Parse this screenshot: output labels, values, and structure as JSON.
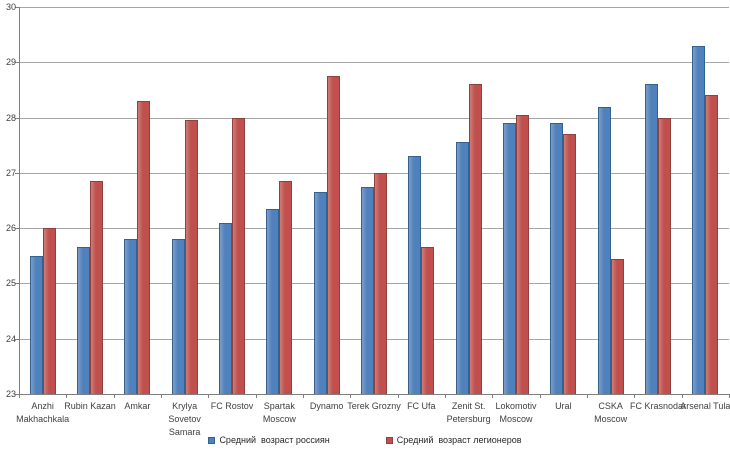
{
  "colors": {
    "series_russians": "#4F81BD",
    "series_legionnaires": "#C0504D",
    "gridline": "#A6A6A6",
    "axis": "#7F7F7F",
    "text": "#404040",
    "background": "#FFFFFF"
  },
  "chart_data": {
    "type": "bar",
    "title": "",
    "xlabel": "",
    "ylabel": "",
    "categories": [
      "Anzhi Makhachkala",
      "Rubin Kazan",
      "Amkar",
      "Krylya Sovetov Samara",
      "FC Rostov",
      "Spartak Moscow",
      "Dynamo",
      "Terek Grozny",
      "FC Ufa",
      "Zenit St. Petersburg",
      "Lokomotiv Moscow",
      "Ural",
      "CSKA Moscow",
      "FC Krasnodar",
      "Arsenal Tula"
    ],
    "category_label_lines": [
      [
        "Anzhi",
        "Makhachkala"
      ],
      [
        "Rubin Kazan"
      ],
      [
        "Amkar"
      ],
      [
        "Krylya",
        "Sovetov",
        "Samara"
      ],
      [
        "FC Rostov"
      ],
      [
        "Spartak",
        "Moscow"
      ],
      [
        "Dynamo"
      ],
      [
        "Terek Grozny"
      ],
      [
        "FC Ufa"
      ],
      [
        "Zenit St.",
        "Petersburg"
      ],
      [
        "Lokomotiv",
        "Moscow"
      ],
      [
        "Ural"
      ],
      [
        "CSKA",
        "Moscow"
      ],
      [
        "FC Krasnodar"
      ],
      [
        "Arsenal Tula"
      ]
    ],
    "series": [
      {
        "name": "Средний  возраст россиян",
        "color": "#4F81BD",
        "values": [
          25.5,
          25.65,
          25.8,
          25.8,
          26.1,
          26.35,
          26.65,
          26.75,
          27.3,
          27.55,
          27.9,
          27.9,
          28.2,
          28.6,
          29.3
        ]
      },
      {
        "name": "Средний  возраст легионеров",
        "color": "#C0504D",
        "values": [
          26.0,
          26.85,
          28.3,
          27.95,
          28.0,
          26.85,
          28.75,
          27.0,
          25.65,
          28.6,
          28.05,
          27.7,
          25.45,
          28.0,
          28.4
        ]
      }
    ],
    "ylim": [
      23,
      30
    ],
    "yticks": [
      23,
      24,
      25,
      26,
      27,
      28,
      29,
      30
    ],
    "grid": "horizontal",
    "legend_position": "bottom"
  }
}
